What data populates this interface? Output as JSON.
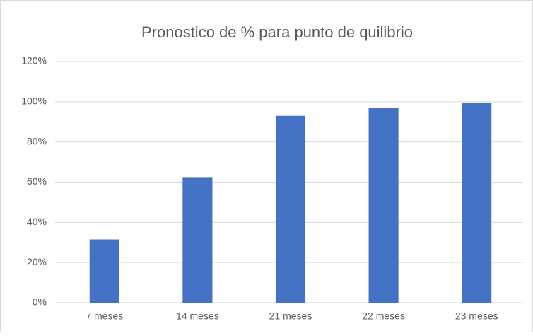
{
  "chart_data": {
    "type": "bar",
    "title": "Pronostico de % para punto de quilibrio",
    "categories": [
      "7 meses",
      "14 meses",
      "21 meses",
      "22 meses",
      "23 meses"
    ],
    "values": [
      31.5,
      62.5,
      93,
      97,
      99.5
    ],
    "color": "#4472c4",
    "ylim": [
      0,
      120
    ],
    "yticks": [
      {
        "value": 0,
        "label": "0%"
      },
      {
        "value": 20,
        "label": "20%"
      },
      {
        "value": 40,
        "label": "40%"
      },
      {
        "value": 60,
        "label": "60%"
      },
      {
        "value": 80,
        "label": "80%"
      },
      {
        "value": 100,
        "label": "100%"
      },
      {
        "value": 120,
        "label": "120%"
      }
    ],
    "grid": true
  }
}
